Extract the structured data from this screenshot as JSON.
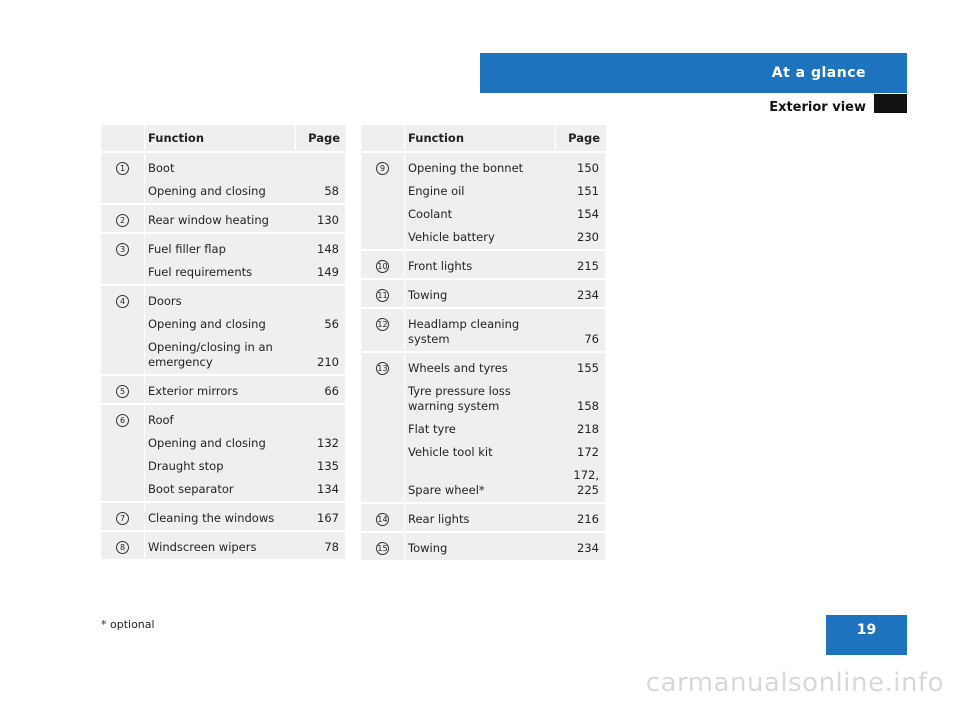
{
  "header": {
    "section": "At a glance",
    "subsection": "Exterior view"
  },
  "left_table": {
    "col_function": "Function",
    "col_page": "Page",
    "rows": [
      {
        "num": "1",
        "entries": [
          {
            "text": "Boot",
            "page": ""
          },
          {
            "text": "Opening and closing",
            "page": "58"
          }
        ]
      },
      {
        "num": "2",
        "entries": [
          {
            "text": "Rear window heating",
            "page": "130"
          }
        ]
      },
      {
        "num": "3",
        "entries": [
          {
            "text": "Fuel filler flap",
            "page": "148"
          },
          {
            "text": "Fuel requirements",
            "page": "149"
          }
        ]
      },
      {
        "num": "4",
        "entries": [
          {
            "text": "Doors",
            "page": ""
          },
          {
            "text": "Opening and closing",
            "page": "56"
          },
          {
            "text": "Opening/closing in an emergency",
            "page": "210"
          }
        ]
      },
      {
        "num": "5",
        "entries": [
          {
            "text": "Exterior mirrors",
            "page": "66"
          }
        ]
      },
      {
        "num": "6",
        "entries": [
          {
            "text": "Roof",
            "page": ""
          },
          {
            "text": "Opening and closing",
            "page": "132"
          },
          {
            "text": "Draught stop",
            "page": "135"
          },
          {
            "text": "Boot separator",
            "page": "134"
          }
        ]
      },
      {
        "num": "7",
        "entries": [
          {
            "text": "Cleaning the windows",
            "page": "167"
          }
        ]
      },
      {
        "num": "8",
        "entries": [
          {
            "text": "Windscreen wipers",
            "page": "78"
          }
        ]
      }
    ]
  },
  "right_table": {
    "col_function": "Function",
    "col_page": "Page",
    "rows": [
      {
        "num": "9",
        "entries": [
          {
            "text": "Opening the bonnet",
            "page": "150"
          },
          {
            "text": "Engine oil",
            "page": "151"
          },
          {
            "text": "Coolant",
            "page": "154"
          },
          {
            "text": "Vehicle battery",
            "page": "230"
          }
        ]
      },
      {
        "num": "10",
        "entries": [
          {
            "text": "Front lights",
            "page": "215"
          }
        ]
      },
      {
        "num": "11",
        "entries": [
          {
            "text": "Towing",
            "page": "234"
          }
        ]
      },
      {
        "num": "12",
        "entries": [
          {
            "text": "Headlamp cleaning system",
            "page": "76"
          }
        ]
      },
      {
        "num": "13",
        "entries": [
          {
            "text": "Wheels and tyres",
            "page": "155"
          },
          {
            "text": "Tyre pressure loss warning system",
            "page": "158"
          },
          {
            "text": "Flat tyre",
            "page": "218"
          },
          {
            "text": "Vehicle tool kit",
            "page": "172"
          },
          {
            "text": "Spare wheel*",
            "page": "172, 225"
          }
        ]
      },
      {
        "num": "14",
        "entries": [
          {
            "text": "Rear lights",
            "page": "216"
          }
        ]
      },
      {
        "num": "15",
        "entries": [
          {
            "text": "Towing",
            "page": "234"
          }
        ]
      }
    ]
  },
  "footnote": "* optional",
  "page_number": "19",
  "watermark": "carmanualsonline.info",
  "colors": {
    "accent": "#1e73be",
    "table_bg": "#eef0f0"
  }
}
